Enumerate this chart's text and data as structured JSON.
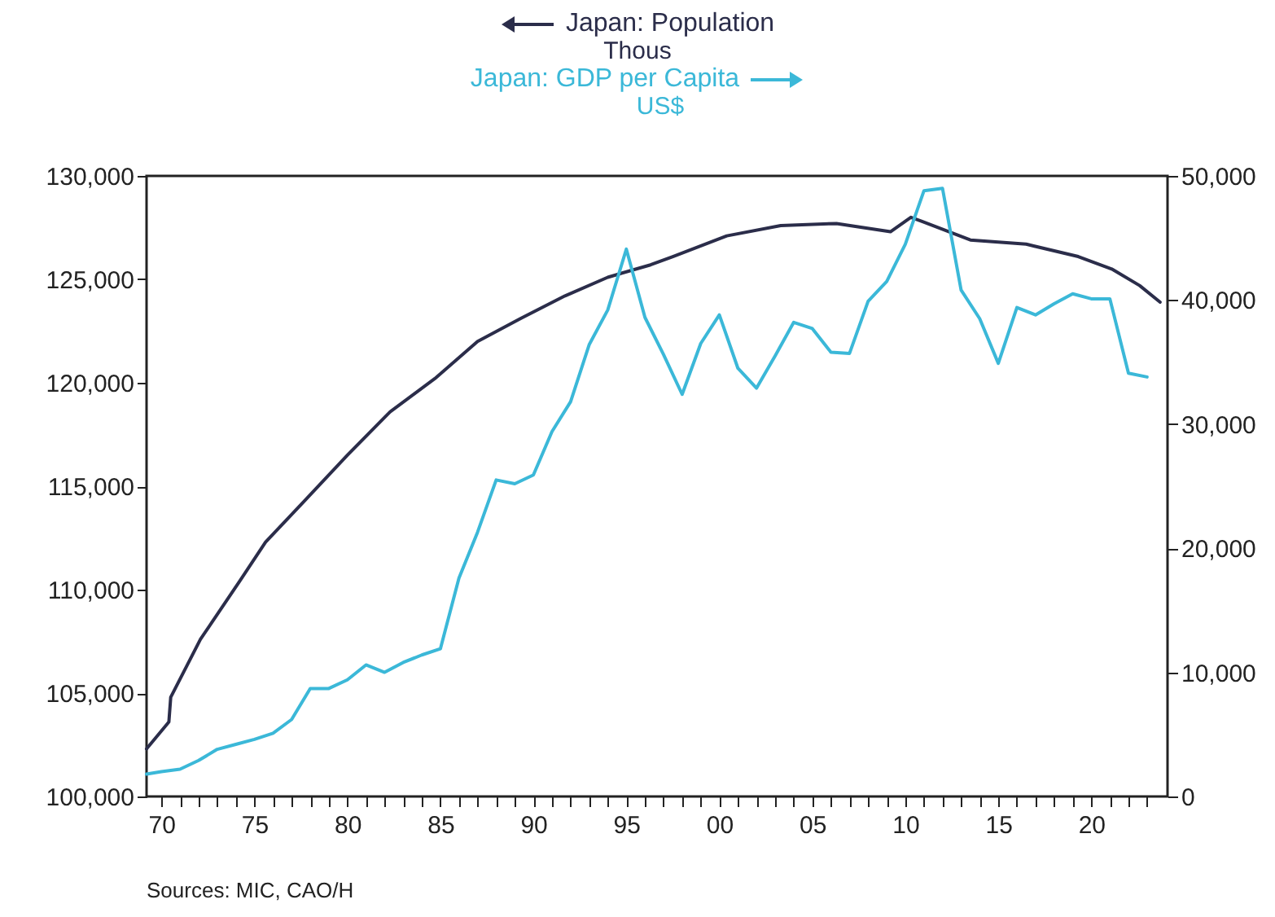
{
  "chart_data": {
    "type": "line",
    "ylabel": "Thous",
    "y2label": "US$",
    "legend": "top",
    "grid": false,
    "annotations": [
      "Sources:  MIC, CAO/H"
    ],
    "xlim": [
      1969.2,
      2024.1
    ],
    "xticks": [
      {
        "value": 1970,
        "label": "70"
      },
      {
        "value": 1971,
        "label": null
      },
      {
        "value": 1972,
        "label": null
      },
      {
        "value": 1973,
        "label": null
      },
      {
        "value": 1974,
        "label": null
      },
      {
        "value": 1975,
        "label": "75"
      },
      {
        "value": 1976,
        "label": null
      },
      {
        "value": 1977,
        "label": null
      },
      {
        "value": 1978,
        "label": null
      },
      {
        "value": 1979,
        "label": null
      },
      {
        "value": 1980,
        "label": "80"
      },
      {
        "value": 1981,
        "label": null
      },
      {
        "value": 1982,
        "label": null
      },
      {
        "value": 1983,
        "label": null
      },
      {
        "value": 1984,
        "label": null
      },
      {
        "value": 1985,
        "label": "85"
      },
      {
        "value": 1986,
        "label": null
      },
      {
        "value": 1987,
        "label": null
      },
      {
        "value": 1988,
        "label": null
      },
      {
        "value": 1989,
        "label": null
      },
      {
        "value": 1990,
        "label": "90"
      },
      {
        "value": 1991,
        "label": null
      },
      {
        "value": 1992,
        "label": null
      },
      {
        "value": 1993,
        "label": null
      },
      {
        "value": 1994,
        "label": null
      },
      {
        "value": 1995,
        "label": "95"
      },
      {
        "value": 1996,
        "label": null
      },
      {
        "value": 1997,
        "label": null
      },
      {
        "value": 1998,
        "label": null
      },
      {
        "value": 1999,
        "label": null
      },
      {
        "value": 2000,
        "label": "00"
      },
      {
        "value": 2001,
        "label": null
      },
      {
        "value": 2002,
        "label": null
      },
      {
        "value": 2003,
        "label": null
      },
      {
        "value": 2004,
        "label": null
      },
      {
        "value": 2005,
        "label": "05"
      },
      {
        "value": 2006,
        "label": null
      },
      {
        "value": 2007,
        "label": null
      },
      {
        "value": 2008,
        "label": null
      },
      {
        "value": 2009,
        "label": null
      },
      {
        "value": 2010,
        "label": "10"
      },
      {
        "value": 2011,
        "label": null
      },
      {
        "value": 2012,
        "label": null
      },
      {
        "value": 2013,
        "label": null
      },
      {
        "value": 2014,
        "label": null
      },
      {
        "value": 2015,
        "label": "15"
      },
      {
        "value": 2016,
        "label": null
      },
      {
        "value": 2017,
        "label": null
      },
      {
        "value": 2018,
        "label": null
      },
      {
        "value": 2019,
        "label": null
      },
      {
        "value": 2020,
        "label": "20"
      },
      {
        "value": 2021,
        "label": null
      },
      {
        "value": 2022,
        "label": null
      },
      {
        "value": 2023,
        "label": null
      }
    ],
    "ylim": [
      100000,
      130000
    ],
    "yticks": [
      {
        "value": 100000,
        "label": "100,000"
      },
      {
        "value": 105000,
        "label": "105,000"
      },
      {
        "value": 110000,
        "label": "110,000"
      },
      {
        "value": 115000,
        "label": "115,000"
      },
      {
        "value": 120000,
        "label": "120,000"
      },
      {
        "value": 125000,
        "label": "125,000"
      },
      {
        "value": 130000,
        "label": "130,000"
      }
    ],
    "y2lim": [
      0,
      50000
    ],
    "y2ticks": [
      0,
      {
        "value": 10000,
        "label": "10,000"
      },
      {
        "value": 20000,
        "label": "20,000"
      },
      {
        "value": 30000,
        "label": "30,000"
      },
      {
        "value": 40000,
        "label": "40,000"
      },
      {
        "value": 50000,
        "label": "50,000"
      }
    ],
    "series": [
      {
        "name": "Japan: Population",
        "color": "#2b2d4a",
        "axis": "y",
        "x": [
          1969.2,
          1970.4,
          1970.5,
          1972.1,
          1974.2,
          1975.6,
          1977.7,
          1980,
          1982.3,
          1984.7,
          1987,
          1989.3,
          1991.7,
          1994,
          1996.3,
          1997.5,
          2000.4,
          2003.3,
          2006.3,
          2009.2,
          2010.3,
          2010.9,
          2013.5,
          2016.5,
          2019.3,
          2021.1,
          2022.6,
          2023.7
        ],
        "values": [
          102300,
          103600,
          104800,
          107600,
          110400,
          112300,
          114300,
          116500,
          118600,
          120200,
          122000,
          123100,
          124200,
          125100,
          125700,
          126100,
          127100,
          127600,
          127700,
          127300,
          128000,
          127800,
          126900,
          126700,
          126100,
          125500,
          124700,
          123900
        ]
      },
      {
        "name": "Japan: GDP per Capita",
        "color": "#3bb8d8",
        "axis": "y2",
        "x": [
          1969.2,
          1970,
          1971,
          1972,
          1973,
          1974,
          1975,
          1976,
          1977,
          1978,
          1979,
          1980,
          1981,
          1982,
          1983,
          1984,
          1985,
          1986,
          1987,
          1988,
          1989,
          1990,
          1991,
          1992,
          1993,
          1994,
          1995,
          1996,
          1997,
          1998,
          1999,
          2000,
          2001,
          2002,
          2003,
          2004,
          2005,
          2006,
          2007,
          2008,
          2009,
          2010,
          2011,
          2012,
          2013,
          2014,
          2015,
          2016,
          2017,
          2018,
          2019,
          2020,
          2021,
          2022,
          2023
        ],
        "values": [
          1800,
          2000,
          2200,
          2900,
          3800,
          4200,
          4600,
          5100,
          6200,
          8700,
          8700,
          9400,
          10600,
          10000,
          10800,
          11400,
          11900,
          17600,
          21300,
          25500,
          25200,
          25900,
          29400,
          31800,
          36400,
          39200,
          44100,
          38600,
          35600,
          32400,
          36500,
          38800,
          34500,
          32900,
          35500,
          38200,
          37700,
          35800,
          35700,
          39900,
          41500,
          44500,
          48800,
          49000,
          40800,
          38500,
          34900,
          39400,
          38800,
          39700,
          40500,
          40100,
          40100,
          34100,
          33800
        ]
      }
    ]
  }
}
